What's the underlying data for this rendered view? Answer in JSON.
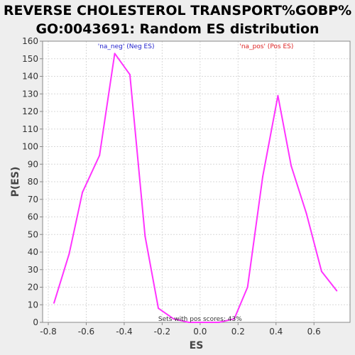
{
  "chart_data": {
    "type": "line",
    "title_line1": "REVERSE CHOLESTEROL TRANSPORT%GOBP%",
    "title_line2": "GO:0043691: Random ES distribution",
    "xlabel": "ES",
    "ylabel": "P(ES)",
    "xlim": [
      -0.83,
      0.79
    ],
    "ylim": [
      0,
      160
    ],
    "x_ticks": [
      -0.8,
      -0.6,
      -0.4,
      -0.2,
      0.0,
      0.2,
      0.4,
      0.6
    ],
    "x_tick_labels": [
      "-0.8",
      "-0.6",
      "-0.4",
      "-0.2",
      "0.0",
      "0.2",
      "0.4",
      "0.6"
    ],
    "y_ticks": [
      0,
      10,
      20,
      30,
      40,
      50,
      60,
      70,
      80,
      90,
      100,
      110,
      120,
      130,
      140,
      150,
      160
    ],
    "y_tick_labels": [
      "0",
      "10",
      "20",
      "30",
      "40",
      "50",
      "60",
      "70",
      "80",
      "90",
      "100",
      "110",
      "120",
      "130",
      "140",
      "150",
      "160"
    ],
    "grid": true,
    "line_color": "#ff33ff",
    "series": [
      {
        "x": [
          -0.77,
          -0.69,
          -0.62,
          -0.53,
          -0.45,
          -0.37,
          -0.29,
          -0.22,
          -0.14,
          -0.06,
          0.02,
          0.1,
          0.18,
          0.25,
          0.33,
          0.41,
          0.48,
          0.56,
          0.64,
          0.72
        ],
        "values": [
          11,
          39,
          74,
          95,
          153,
          141,
          49,
          8,
          2,
          0,
          0,
          0,
          2,
          20,
          83,
          129,
          89,
          62,
          29,
          18
        ]
      }
    ],
    "annotations": [
      {
        "text": "'na_neg' (Neg ES)",
        "x": -0.39,
        "y": 156,
        "color": "#2222cc"
      },
      {
        "text": "'na_pos' (Pos ES)",
        "x": 0.35,
        "y": 156,
        "color": "#dd2222"
      }
    ],
    "footnote": "Sets with pos scores: 43%"
  }
}
